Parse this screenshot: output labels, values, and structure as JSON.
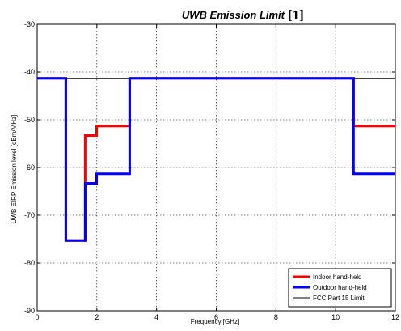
{
  "chart_data": {
    "type": "line",
    "title": "UWB Emission Limit",
    "title_ref": "[1]",
    "xlabel": "Frequency [GHz]",
    "ylabel": "UWB EIRP Emission level [dBm/MHz]",
    "xlim": [
      0,
      12
    ],
    "ylim": [
      -90,
      -30
    ],
    "xticks": [
      0,
      2,
      4,
      6,
      8,
      10,
      12
    ],
    "yticks": [
      -90,
      -80,
      -70,
      -60,
      -50,
      -40,
      -30
    ],
    "grid": true,
    "legend_position": "bottom-right",
    "series": [
      {
        "name": "Indoor hand-held",
        "color": "#ff0000",
        "x": [
          0,
          0.96,
          0.96,
          1.61,
          1.61,
          1.99,
          1.99,
          3.1,
          3.1,
          10.6,
          10.6,
          12
        ],
        "y": [
          -41.3,
          -41.3,
          -75.3,
          -75.3,
          -53.3,
          -53.3,
          -51.3,
          -51.3,
          -41.3,
          -41.3,
          -51.3,
          -51.3
        ]
      },
      {
        "name": "Outdoor hand-held",
        "color": "#0000ff",
        "x": [
          0,
          0.96,
          0.96,
          1.61,
          1.61,
          1.99,
          1.99,
          3.1,
          3.1,
          10.6,
          10.6,
          12
        ],
        "y": [
          -41.3,
          -41.3,
          -75.3,
          -75.3,
          -63.3,
          -63.3,
          -61.3,
          -61.3,
          -41.3,
          -41.3,
          -61.3,
          -61.3
        ]
      },
      {
        "name": "FCC Part 15 Limit",
        "color": "#000000",
        "x": [
          0,
          12
        ],
        "y": [
          -41.3,
          -41.3
        ]
      }
    ]
  }
}
